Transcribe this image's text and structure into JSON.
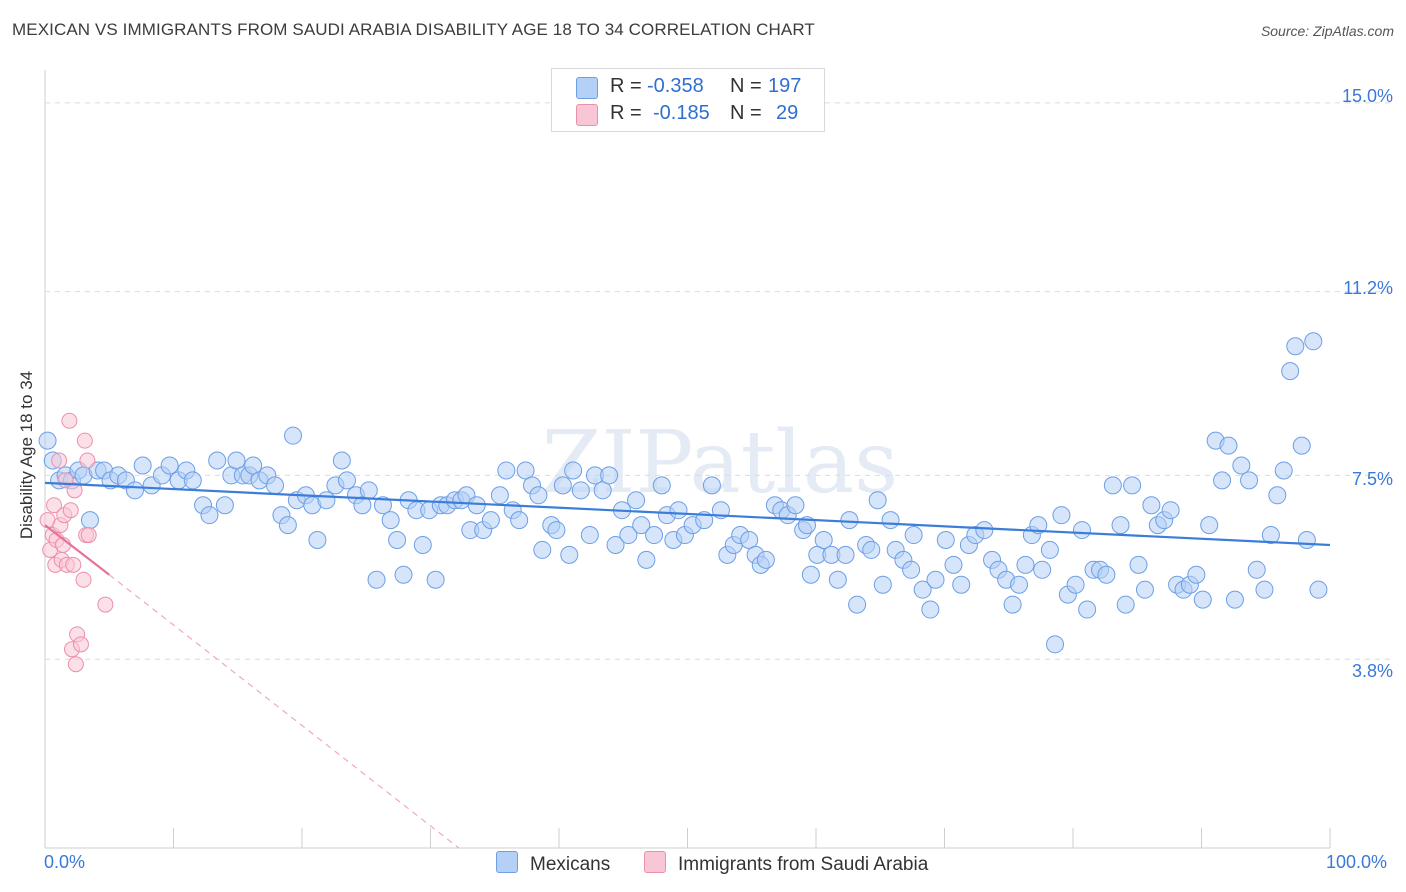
{
  "title": "MEXICAN VS IMMIGRANTS FROM SAUDI ARABIA DISABILITY AGE 18 TO 34 CORRELATION CHART",
  "source": "Source: ZipAtlas.com",
  "watermark": "ZIPatlas",
  "legend": {
    "r_label": "R =",
    "n_label": "N =",
    "rows": [
      {
        "r": "-0.358",
        "n": "197",
        "color": "#b5d0f5",
        "border": "#6d9fe6"
      },
      {
        "r": "-0.185",
        "n": "29",
        "color": "#f9c6d5",
        "border": "#ec8fab"
      }
    ]
  },
  "bottom_legend": [
    {
      "label": "Mexicans",
      "color": "#b5d0f5",
      "border": "#6d9fe6"
    },
    {
      "label": "Immigrants from Saudi Arabia",
      "color": "#f9c6d5",
      "border": "#ec8fab"
    }
  ],
  "chart_data": {
    "type": "scatter",
    "title": "MEXICAN VS IMMIGRANTS FROM SAUDI ARABIA DISABILITY AGE 18 TO 34 CORRELATION CHART",
    "xlabel": "",
    "ylabel": "Disability Age 18 to 34",
    "xlim": [
      0,
      100
    ],
    "ylim": [
      0,
      15.5
    ],
    "x_tick_labels": [
      "0.0%",
      "100.0%"
    ],
    "y_ticks": [
      3.8,
      7.5,
      11.2,
      15.0
    ],
    "y_tick_labels": [
      "3.8%",
      "7.5%",
      "11.2%",
      "15.0%"
    ],
    "grid": true,
    "colors": {
      "mexicans": "#3b7dd8",
      "saudi": "#e8729a",
      "tick": "#3b78d8"
    },
    "series": [
      {
        "name": "Mexicans",
        "trend": {
          "x": [
            0,
            100
          ],
          "y": [
            7.35,
            6.1
          ]
        },
        "points": [
          [
            0.2,
            8.2
          ],
          [
            0.6,
            7.8
          ],
          [
            1.1,
            7.4
          ],
          [
            1.6,
            7.5
          ],
          [
            2.1,
            7.4
          ],
          [
            2.6,
            7.6
          ],
          [
            3.0,
            7.5
          ],
          [
            3.5,
            6.6
          ],
          [
            4.1,
            7.6
          ],
          [
            4.6,
            7.6
          ],
          [
            5.1,
            7.4
          ],
          [
            5.7,
            7.5
          ],
          [
            6.3,
            7.4
          ],
          [
            7.0,
            7.2
          ],
          [
            7.6,
            7.7
          ],
          [
            8.3,
            7.3
          ],
          [
            9.1,
            7.5
          ],
          [
            9.7,
            7.7
          ],
          [
            10.4,
            7.4
          ],
          [
            11.0,
            7.6
          ],
          [
            11.5,
            7.4
          ],
          [
            12.3,
            6.9
          ],
          [
            12.8,
            6.7
          ],
          [
            13.4,
            7.8
          ],
          [
            14.0,
            6.9
          ],
          [
            14.5,
            7.5
          ],
          [
            14.9,
            7.8
          ],
          [
            15.4,
            7.5
          ],
          [
            15.9,
            7.5
          ],
          [
            16.2,
            7.7
          ],
          [
            16.7,
            7.4
          ],
          [
            17.3,
            7.5
          ],
          [
            17.9,
            7.3
          ],
          [
            18.4,
            6.7
          ],
          [
            18.9,
            6.5
          ],
          [
            19.3,
            8.3
          ],
          [
            19.6,
            7.0
          ],
          [
            20.3,
            7.1
          ],
          [
            20.8,
            6.9
          ],
          [
            21.2,
            6.2
          ],
          [
            21.9,
            7.0
          ],
          [
            22.6,
            7.3
          ],
          [
            23.1,
            7.8
          ],
          [
            23.5,
            7.4
          ],
          [
            24.2,
            7.1
          ],
          [
            24.7,
            6.9
          ],
          [
            25.2,
            7.2
          ],
          [
            25.8,
            5.4
          ],
          [
            26.3,
            6.9
          ],
          [
            26.9,
            6.6
          ],
          [
            27.4,
            6.2
          ],
          [
            27.9,
            5.5
          ],
          [
            28.3,
            7.0
          ],
          [
            28.9,
            6.8
          ],
          [
            29.4,
            6.1
          ],
          [
            29.9,
            6.8
          ],
          [
            30.4,
            5.4
          ],
          [
            30.8,
            6.9
          ],
          [
            31.3,
            6.9
          ],
          [
            31.9,
            7.0
          ],
          [
            32.4,
            7.0
          ],
          [
            32.8,
            7.1
          ],
          [
            33.1,
            6.4
          ],
          [
            33.6,
            6.9
          ],
          [
            34.1,
            6.4
          ],
          [
            34.7,
            6.6
          ],
          [
            35.4,
            7.1
          ],
          [
            35.9,
            7.6
          ],
          [
            36.4,
            6.8
          ],
          [
            36.9,
            6.6
          ],
          [
            37.4,
            7.6
          ],
          [
            37.9,
            7.3
          ],
          [
            38.4,
            7.1
          ],
          [
            38.7,
            6.0
          ],
          [
            39.4,
            6.5
          ],
          [
            39.8,
            6.4
          ],
          [
            40.3,
            7.3
          ],
          [
            40.8,
            5.9
          ],
          [
            41.1,
            7.6
          ],
          [
            41.7,
            7.2
          ],
          [
            42.4,
            6.3
          ],
          [
            42.8,
            7.5
          ],
          [
            43.4,
            7.2
          ],
          [
            43.9,
            7.5
          ],
          [
            44.4,
            6.1
          ],
          [
            44.9,
            6.8
          ],
          [
            45.4,
            6.3
          ],
          [
            46.0,
            7.0
          ],
          [
            46.4,
            6.5
          ],
          [
            46.8,
            5.8
          ],
          [
            47.4,
            6.3
          ],
          [
            48.0,
            7.3
          ],
          [
            48.4,
            6.7
          ],
          [
            48.9,
            6.2
          ],
          [
            49.3,
            6.8
          ],
          [
            49.8,
            6.3
          ],
          [
            50.4,
            6.5
          ],
          [
            51.3,
            6.6
          ],
          [
            51.9,
            7.3
          ],
          [
            52.6,
            6.8
          ],
          [
            53.1,
            5.9
          ],
          [
            53.6,
            6.1
          ],
          [
            54.1,
            6.3
          ],
          [
            54.8,
            6.2
          ],
          [
            55.3,
            5.9
          ],
          [
            55.7,
            5.7
          ],
          [
            56.1,
            5.8
          ],
          [
            56.8,
            6.9
          ],
          [
            57.3,
            6.8
          ],
          [
            57.8,
            6.7
          ],
          [
            58.4,
            6.9
          ],
          [
            59.0,
            6.4
          ],
          [
            59.3,
            6.5
          ],
          [
            59.6,
            5.5
          ],
          [
            60.1,
            5.9
          ],
          [
            60.6,
            6.2
          ],
          [
            61.2,
            5.9
          ],
          [
            61.7,
            5.4
          ],
          [
            62.3,
            5.9
          ],
          [
            62.6,
            6.6
          ],
          [
            63.2,
            4.9
          ],
          [
            63.9,
            6.1
          ],
          [
            64.3,
            6.0
          ],
          [
            64.8,
            7.0
          ],
          [
            65.2,
            5.3
          ],
          [
            65.8,
            6.6
          ],
          [
            66.2,
            6.0
          ],
          [
            66.8,
            5.8
          ],
          [
            67.4,
            5.6
          ],
          [
            67.6,
            6.3
          ],
          [
            68.3,
            5.2
          ],
          [
            68.9,
            4.8
          ],
          [
            69.3,
            5.4
          ],
          [
            70.1,
            6.2
          ],
          [
            70.7,
            5.7
          ],
          [
            71.3,
            5.3
          ],
          [
            71.9,
            6.1
          ],
          [
            72.4,
            6.3
          ],
          [
            73.1,
            6.4
          ],
          [
            73.7,
            5.8
          ],
          [
            74.2,
            5.6
          ],
          [
            74.8,
            5.4
          ],
          [
            75.3,
            4.9
          ],
          [
            75.8,
            5.3
          ],
          [
            76.3,
            5.7
          ],
          [
            76.8,
            6.3
          ],
          [
            77.3,
            6.5
          ],
          [
            77.6,
            5.6
          ],
          [
            78.2,
            6.0
          ],
          [
            78.6,
            4.1
          ],
          [
            79.1,
            6.7
          ],
          [
            79.6,
            5.1
          ],
          [
            80.2,
            5.3
          ],
          [
            80.7,
            6.4
          ],
          [
            81.1,
            4.8
          ],
          [
            81.6,
            5.6
          ],
          [
            82.1,
            5.6
          ],
          [
            82.6,
            5.5
          ],
          [
            83.1,
            7.3
          ],
          [
            83.7,
            6.5
          ],
          [
            84.1,
            4.9
          ],
          [
            84.6,
            7.3
          ],
          [
            85.1,
            5.7
          ],
          [
            85.6,
            5.2
          ],
          [
            86.1,
            6.9
          ],
          [
            86.6,
            6.5
          ],
          [
            87.1,
            6.6
          ],
          [
            87.6,
            6.8
          ],
          [
            88.1,
            5.3
          ],
          [
            88.6,
            5.2
          ],
          [
            89.1,
            5.3
          ],
          [
            89.6,
            5.5
          ],
          [
            90.1,
            5.0
          ],
          [
            90.6,
            6.5
          ],
          [
            91.1,
            8.2
          ],
          [
            91.6,
            7.4
          ],
          [
            92.1,
            8.1
          ],
          [
            92.6,
            5.0
          ],
          [
            93.1,
            7.7
          ],
          [
            93.7,
            7.4
          ],
          [
            94.3,
            5.6
          ],
          [
            94.9,
            5.2
          ],
          [
            95.4,
            6.3
          ],
          [
            95.9,
            7.1
          ],
          [
            96.4,
            7.6
          ],
          [
            96.9,
            9.6
          ],
          [
            97.3,
            10.1
          ],
          [
            97.8,
            8.1
          ],
          [
            98.2,
            6.2
          ],
          [
            98.7,
            10.2
          ],
          [
            99.1,
            5.2
          ]
        ]
      },
      {
        "name": "Immigrants from Saudi Arabia",
        "trend": {
          "x": [
            0,
            5
          ],
          "y": [
            6.5,
            5.5
          ]
        },
        "trend_ext": {
          "x": [
            5,
            32.2
          ],
          "y": [
            5.5,
            0
          ]
        },
        "points": [
          [
            0.2,
            6.6
          ],
          [
            0.4,
            6.0
          ],
          [
            0.6,
            6.3
          ],
          [
            0.7,
            6.9
          ],
          [
            0.8,
            5.7
          ],
          [
            0.9,
            6.2
          ],
          [
            1.1,
            7.8
          ],
          [
            1.2,
            6.5
          ],
          [
            1.3,
            5.8
          ],
          [
            1.4,
            6.1
          ],
          [
            1.5,
            6.7
          ],
          [
            1.6,
            7.4
          ],
          [
            1.7,
            5.7
          ],
          [
            1.9,
            8.6
          ],
          [
            2.0,
            6.8
          ],
          [
            2.1,
            4.0
          ],
          [
            2.2,
            5.7
          ],
          [
            2.3,
            7.2
          ],
          [
            2.4,
            3.7
          ],
          [
            2.5,
            4.3
          ],
          [
            2.8,
            4.1
          ],
          [
            3.0,
            5.4
          ],
          [
            3.1,
            8.2
          ],
          [
            3.2,
            6.3
          ],
          [
            3.3,
            7.8
          ],
          [
            3.4,
            6.3
          ],
          [
            4.7,
            4.9
          ]
        ]
      }
    ]
  }
}
